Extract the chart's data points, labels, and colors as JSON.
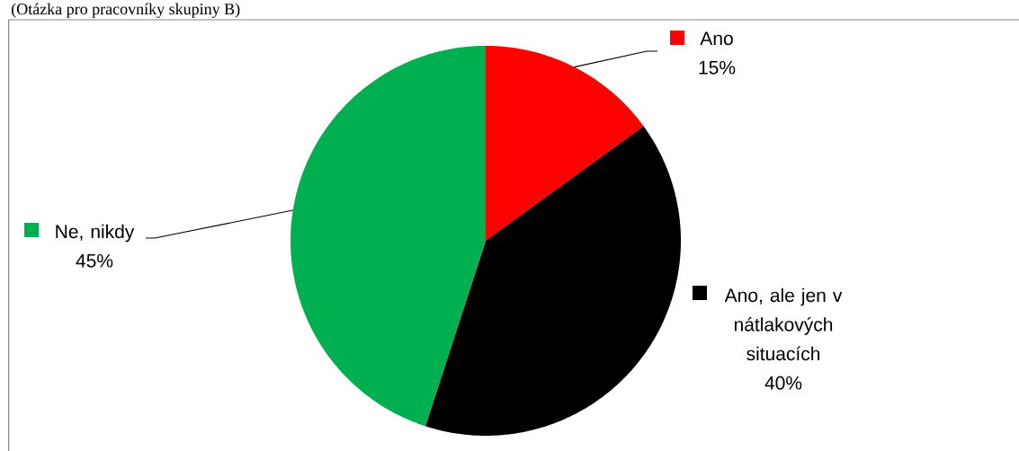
{
  "chart_data": {
    "type": "pie",
    "title": "(Otázka pro pracovníky skupiny B)",
    "categories": [
      "Ano",
      "Ano, ale jen v nátlakových situacích",
      "Ne, nikdy"
    ],
    "values": [
      15,
      40,
      45
    ],
    "colors": [
      "#ff0000",
      "#000000",
      "#00b050"
    ],
    "value_labels": [
      "15%",
      "40%",
      "45%"
    ],
    "legend": "top left"
  }
}
